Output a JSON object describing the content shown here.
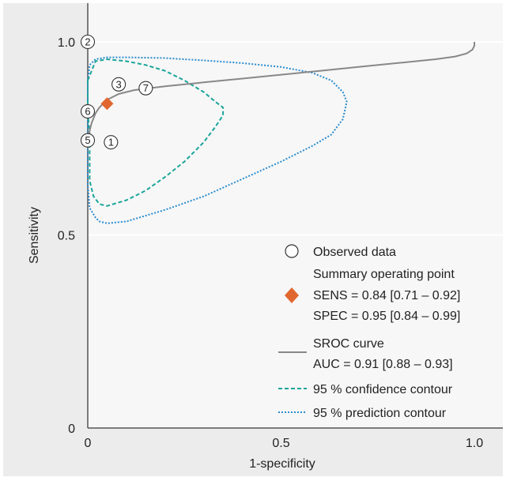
{
  "chart_data": {
    "type": "scatter",
    "xlabel": "1-specificity",
    "ylabel": "Sensitivity",
    "xlim": [
      0,
      1.05
    ],
    "ylim": [
      0,
      1.05
    ],
    "xticks": [
      {
        "value": 0,
        "label": "0"
      },
      {
        "value": 0.5,
        "label": "0.5"
      },
      {
        "value": 1.0,
        "label": "1.0"
      }
    ],
    "yticks": [
      {
        "value": 0,
        "label": "0"
      },
      {
        "value": 0.5,
        "label": "0.5"
      },
      {
        "value": 1.0,
        "label": "1.0"
      }
    ],
    "grid": "horizontal",
    "colors": {
      "panel_bg": "#ececec",
      "summary": "#e0672f",
      "sroc": "#888888",
      "confidence": "#1aa59a",
      "prediction": "#2a8ccf"
    },
    "observed_points": [
      {
        "label": "1",
        "x": 0.06,
        "y": 0.74
      },
      {
        "label": "2",
        "x": 0.0,
        "y": 1.0
      },
      {
        "label": "3",
        "x": 0.08,
        "y": 0.89
      },
      {
        "label": "5",
        "x": 0.0,
        "y": 0.745
      },
      {
        "label": "6",
        "x": 0.0,
        "y": 0.82
      },
      {
        "label": "7",
        "x": 0.15,
        "y": 0.88
      }
    ],
    "summary_point": {
      "x": 0.05,
      "y": 0.84
    },
    "sroc_curve": {
      "x": [
        0.0,
        0.005,
        0.01,
        0.02,
        0.03,
        0.05,
        0.08,
        0.12,
        0.2,
        0.3,
        0.4,
        0.5,
        0.6,
        0.7,
        0.8,
        0.9,
        0.95,
        0.98,
        0.995,
        1.0,
        1.0
      ],
      "y": [
        0.74,
        0.77,
        0.79,
        0.815,
        0.83,
        0.85,
        0.865,
        0.875,
        0.885,
        0.895,
        0.905,
        0.915,
        0.925,
        0.935,
        0.945,
        0.955,
        0.962,
        0.97,
        0.98,
        0.99,
        1.0
      ]
    },
    "confidence_contour": {
      "x": [
        0.0,
        0.02,
        0.05,
        0.1,
        0.15,
        0.2,
        0.25,
        0.3,
        0.33,
        0.35,
        0.35,
        0.33,
        0.3,
        0.25,
        0.2,
        0.15,
        0.1,
        0.05,
        0.03,
        0.015,
        0.005,
        0.005,
        0.005,
        0.0,
        0.0
      ],
      "y": [
        0.9,
        0.95,
        0.955,
        0.95,
        0.94,
        0.925,
        0.9,
        0.87,
        0.845,
        0.83,
        0.81,
        0.78,
        0.74,
        0.69,
        0.65,
        0.615,
        0.59,
        0.575,
        0.58,
        0.6,
        0.64,
        0.7,
        0.76,
        0.82,
        0.9
      ]
    },
    "prediction_contour": {
      "x": [
        0.0,
        0.005,
        0.02,
        0.05,
        0.1,
        0.2,
        0.3,
        0.4,
        0.5,
        0.58,
        0.63,
        0.66,
        0.67,
        0.66,
        0.63,
        0.58,
        0.5,
        0.4,
        0.3,
        0.2,
        0.1,
        0.05,
        0.03,
        0.02,
        0.005,
        0.0,
        0.0,
        0.0
      ],
      "y": [
        0.9,
        0.94,
        0.955,
        0.96,
        0.96,
        0.958,
        0.952,
        0.945,
        0.935,
        0.92,
        0.9,
        0.87,
        0.845,
        0.8,
        0.76,
        0.73,
        0.69,
        0.645,
        0.6,
        0.565,
        0.535,
        0.53,
        0.535,
        0.545,
        0.57,
        0.63,
        0.74,
        0.9
      ]
    },
    "legend": {
      "placement": "bottom-right",
      "observed": "Observed data",
      "summary_lines": [
        "Summary operating point",
        "SENS = 0.84 [0.71 – 0.92]",
        "SPEC = 0.95 [0.84 – 0.99]"
      ],
      "sroc_lines": [
        "SROC curve",
        "AUC = 0.91 [0.88 – 0.93]"
      ],
      "confidence": "95 % confidence contour",
      "prediction": "95 % prediction contour"
    }
  }
}
